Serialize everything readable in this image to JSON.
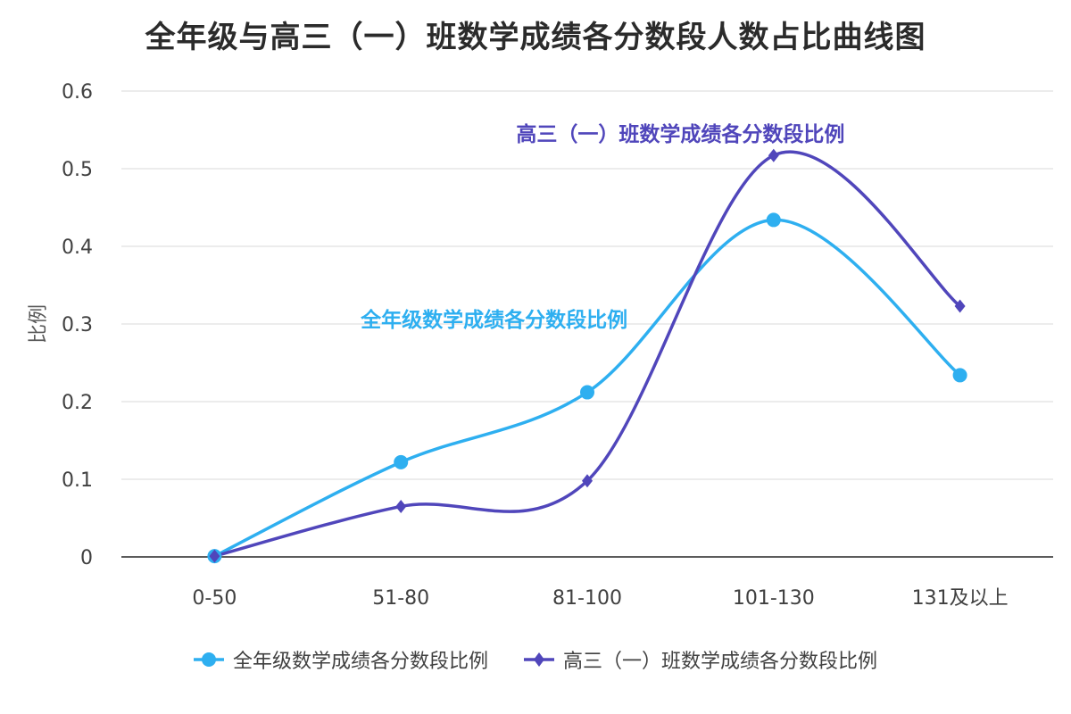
{
  "chart_data": {
    "type": "line",
    "title": "全年级与高三（一）班数学成绩各分数段人数占比曲线图",
    "xlabel": "",
    "ylabel": "比例",
    "categories": [
      "0-50",
      "51-80",
      "81-100",
      "101-130",
      "131及以上"
    ],
    "ylim": [
      0,
      0.6
    ],
    "yticks": [
      0,
      0.1,
      0.2,
      0.3,
      0.4,
      0.5,
      0.6
    ],
    "ytick_labels": [
      "0",
      "0.1",
      "0.2",
      "0.3",
      "0.4",
      "0.5",
      "0.6"
    ],
    "grid": true,
    "smooth": true,
    "legend_position": "bottom",
    "series": [
      {
        "name": "全年级数学成绩各分数段比例",
        "values": [
          0.001,
          0.122,
          0.212,
          0.434,
          0.234
        ],
        "color": "#2eaff0",
        "marker": "circle"
      },
      {
        "name": "高三（一）班数学成绩各分数段比例",
        "values": [
          0.001,
          0.065,
          0.098,
          0.517,
          0.323
        ],
        "color": "#5046bb",
        "marker": "diamond"
      }
    ],
    "annotations": [
      {
        "text": "高三（一）班数学成绩各分数段比例",
        "color": "#5046bb",
        "anchor_category": "81-100",
        "anchor_value": 0.545
      },
      {
        "text": "全年级数学成绩各分数段比例",
        "color": "#2eaff0",
        "anchor_category": "51-80",
        "anchor_value": 0.306
      }
    ]
  }
}
